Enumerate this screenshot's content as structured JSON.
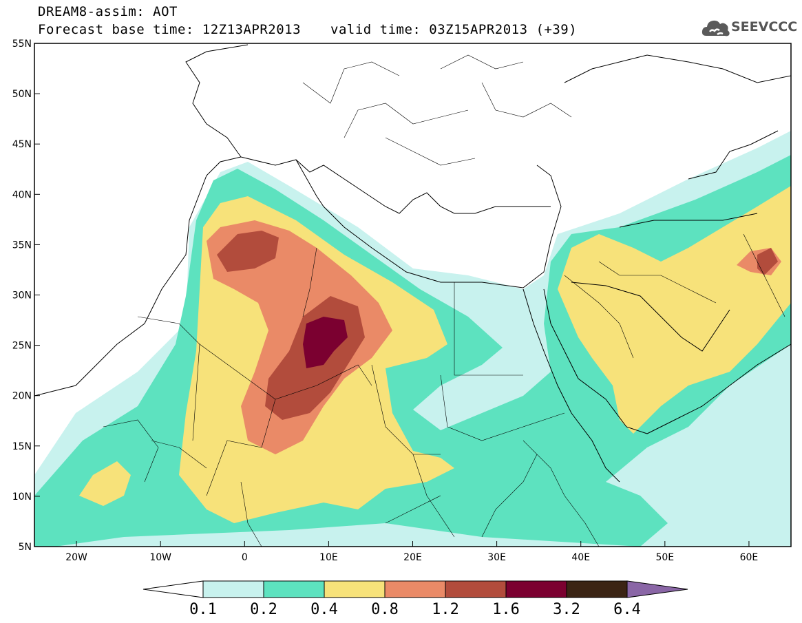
{
  "header": {
    "model_label": "DREAM8-assim: AOT",
    "base_time_label": "Forecast base time: 12Z13APR2013",
    "valid_time_label": "valid time: 03Z15APR2013 (+39)"
  },
  "logo": {
    "text": "SEEVCCC",
    "icon": "cloud-icon"
  },
  "map": {
    "lat_ticks": [
      "55N",
      "50N",
      "45N",
      "40N",
      "35N",
      "30N",
      "25N",
      "20N",
      "15N",
      "10N",
      "5N"
    ],
    "lon_ticks": [
      "20W",
      "10W",
      "0",
      "10E",
      "20E",
      "30E",
      "40E",
      "50E",
      "60E"
    ],
    "lon_range": [
      -25,
      65
    ],
    "lat_range": [
      5,
      55
    ]
  },
  "colorbar": {
    "labels": [
      "0.1",
      "0.2",
      "0.4",
      "0.8",
      "1.2",
      "1.6",
      "3.2",
      "6.4"
    ],
    "colors": [
      "#ffffff",
      "#c8f2ee",
      "#5de2bf",
      "#f7e27a",
      "#ea8a67",
      "#b24c3c",
      "#7b0030",
      "#3b2414",
      "#8a66a6"
    ]
  }
}
